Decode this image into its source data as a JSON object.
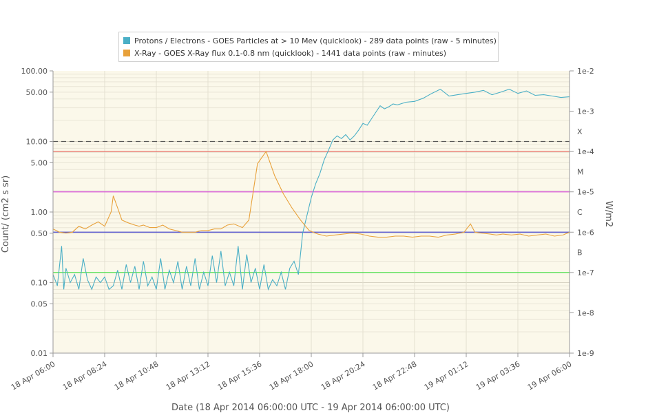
{
  "chart_data": {
    "type": "line",
    "xlabel": "Date (18 Apr 2014 06:00:00 UTC - 19 Apr 2014 06:00:00 UTC)",
    "ylabel_left": "Count/ (cm2 s sr)",
    "ylabel_right": "W/m2",
    "x_tick_labels": [
      "18 Apr 06:00",
      "18 Apr 08:24",
      "18 Apr 10:48",
      "18 Apr 13:12",
      "18 Apr 15:36",
      "18 Apr 18:00",
      "18 Apr 20:24",
      "18 Apr 22:48",
      "19 Apr 01:12",
      "19 Apr 03:36",
      "19 Apr 06:00"
    ],
    "x_range_hours": [
      0,
      24
    ],
    "left_axis": {
      "scale": "log",
      "ylim": [
        0.01,
        100
      ],
      "tick_values": [
        100,
        50,
        10,
        5,
        1,
        0.5,
        0.1,
        0.05,
        0.01
      ],
      "tick_labels": [
        "100.00",
        "50.00",
        "10.00",
        "5.00",
        "1.00",
        "0.50",
        "0.10",
        "0.05",
        "0.01"
      ]
    },
    "right_axis": {
      "scale": "log",
      "ylim": [
        1e-09,
        0.01
      ],
      "tick_labels": [
        "1e-2",
        "1e-3",
        "1e-4",
        "1e-5",
        "1e-6",
        "1e-7",
        "1e-8",
        "1e-9"
      ],
      "class_labels": [
        "X",
        "M",
        "C",
        "B"
      ]
    },
    "reference_lines": [
      {
        "axis": "left",
        "value": 10,
        "color": "#555555",
        "style": "dashed"
      },
      {
        "axis": "right",
        "value": 0.0001,
        "color": "#e8736a"
      },
      {
        "axis": "right",
        "value": 1e-05,
        "color": "#d64fd6"
      },
      {
        "axis": "right",
        "value": 1e-06,
        "color": "#4444cc"
      },
      {
        "axis": "right",
        "value": 1e-07,
        "color": "#44dd44"
      }
    ],
    "series": [
      {
        "name": "Protons / Electrons - GOES Particles at > 10 Mev (quicklook) - 289 data points (raw - 5 minutes)",
        "color": "#4aafc6",
        "axis": "left",
        "x": [
          0,
          0.2,
          0.4,
          0.5,
          0.6,
          0.8,
          1.0,
          1.2,
          1.4,
          1.6,
          1.8,
          2.0,
          2.2,
          2.4,
          2.6,
          2.8,
          3.0,
          3.2,
          3.4,
          3.6,
          3.8,
          4.0,
          4.2,
          4.4,
          4.6,
          4.8,
          5.0,
          5.2,
          5.4,
          5.6,
          5.8,
          6.0,
          6.2,
          6.4,
          6.6,
          6.8,
          7.0,
          7.2,
          7.4,
          7.6,
          7.8,
          8.0,
          8.2,
          8.4,
          8.6,
          8.8,
          9.0,
          9.2,
          9.4,
          9.6,
          9.8,
          10.0,
          10.2,
          10.4,
          10.6,
          10.8,
          11.0,
          11.2,
          11.4,
          11.6,
          11.8,
          12.0,
          12.2,
          12.4,
          12.6,
          12.8,
          13.0,
          13.2,
          13.4,
          13.6,
          13.8,
          14.0,
          14.2,
          14.4,
          14.6,
          14.8,
          15.0,
          15.2,
          15.4,
          15.6,
          15.8,
          16.0,
          16.4,
          16.8,
          17.2,
          17.6,
          18.0,
          18.4,
          18.8,
          19.2,
          19.6,
          20.0,
          20.4,
          20.8,
          21.2,
          21.6,
          22.0,
          22.4,
          22.8,
          23.2,
          23.6,
          24.0
        ],
        "y": [
          0.13,
          0.09,
          0.33,
          0.08,
          0.16,
          0.1,
          0.13,
          0.08,
          0.22,
          0.11,
          0.08,
          0.12,
          0.1,
          0.12,
          0.08,
          0.09,
          0.15,
          0.08,
          0.18,
          0.1,
          0.17,
          0.08,
          0.2,
          0.09,
          0.12,
          0.08,
          0.22,
          0.08,
          0.15,
          0.1,
          0.2,
          0.08,
          0.17,
          0.09,
          0.22,
          0.08,
          0.14,
          0.09,
          0.24,
          0.1,
          0.28,
          0.09,
          0.14,
          0.09,
          0.33,
          0.08,
          0.25,
          0.1,
          0.16,
          0.08,
          0.18,
          0.08,
          0.11,
          0.09,
          0.14,
          0.08,
          0.16,
          0.2,
          0.13,
          0.5,
          0.9,
          1.6,
          2.5,
          3.5,
          5.5,
          7.5,
          10.5,
          12.0,
          11.0,
          12.5,
          10.5,
          12.0,
          14.5,
          18.0,
          17.0,
          21.0,
          26.0,
          32.0,
          29.0,
          31.0,
          34.0,
          33.0,
          36.0,
          37.0,
          41.0,
          48.0,
          55.0,
          44.0,
          46.0,
          48.0,
          50.0,
          53.0,
          46.0,
          50.0,
          55.0,
          48.0,
          52.0,
          45.0,
          46.0,
          44.0,
          42.0,
          43.0
        ]
      },
      {
        "name": "X-Ray - GOES X-Ray flux 0.1-0.8 nm (quicklook) - 1441 data points (raw - minutes)",
        "color": "#e8a13a",
        "axis": "right",
        "x": [
          0,
          0.3,
          0.6,
          0.9,
          1.2,
          1.5,
          1.8,
          2.1,
          2.4,
          2.7,
          2.8,
          3.0,
          3.2,
          3.5,
          3.8,
          4.0,
          4.2,
          4.5,
          4.8,
          5.1,
          5.4,
          5.7,
          6.0,
          6.3,
          6.6,
          6.9,
          7.2,
          7.5,
          7.8,
          8.1,
          8.4,
          8.8,
          9.1,
          9.5,
          9.9,
          10.3,
          10.7,
          11.1,
          11.5,
          11.9,
          12.3,
          12.7,
          13.1,
          13.5,
          13.9,
          14.3,
          14.7,
          15.1,
          15.5,
          15.9,
          16.3,
          16.7,
          17.1,
          17.5,
          17.9,
          18.3,
          18.7,
          19.1,
          19.4,
          19.6,
          19.9,
          20.3,
          20.6,
          20.9,
          21.3,
          21.7,
          22.1,
          22.5,
          22.9,
          23.3,
          23.7,
          24.0
        ],
        "y": [
          1.2e-06,
          1e-06,
          9.5e-07,
          1e-06,
          1.4e-06,
          1.2e-06,
          1.5e-06,
          1.8e-06,
          1.4e-06,
          3.2e-06,
          8e-06,
          4e-06,
          2e-06,
          1.7e-06,
          1.5e-06,
          1.4e-06,
          1.5e-06,
          1.3e-06,
          1.3e-06,
          1.5e-06,
          1.2e-06,
          1.1e-06,
          1e-06,
          1e-06,
          1e-06,
          1.1e-06,
          1.1e-06,
          1.2e-06,
          1.2e-06,
          1.5e-06,
          1.6e-06,
          1.3e-06,
          2e-06,
          5e-05,
          0.0001,
          2.5e-05,
          9e-06,
          4e-06,
          2e-06,
          1.1e-06,
          9e-07,
          8e-07,
          8.5e-07,
          9e-07,
          9.5e-07,
          9e-07,
          8e-07,
          7.5e-07,
          7.5e-07,
          8e-07,
          8e-07,
          7.5e-07,
          8e-07,
          8e-07,
          7.5e-07,
          8.5e-07,
          9e-07,
          1e-06,
          1.6e-06,
          1e-06,
          9.5e-07,
          9e-07,
          8.5e-07,
          9e-07,
          8.5e-07,
          9e-07,
          8e-07,
          8.5e-07,
          9e-07,
          8e-07,
          8.5e-07,
          1e-06
        ]
      }
    ]
  }
}
